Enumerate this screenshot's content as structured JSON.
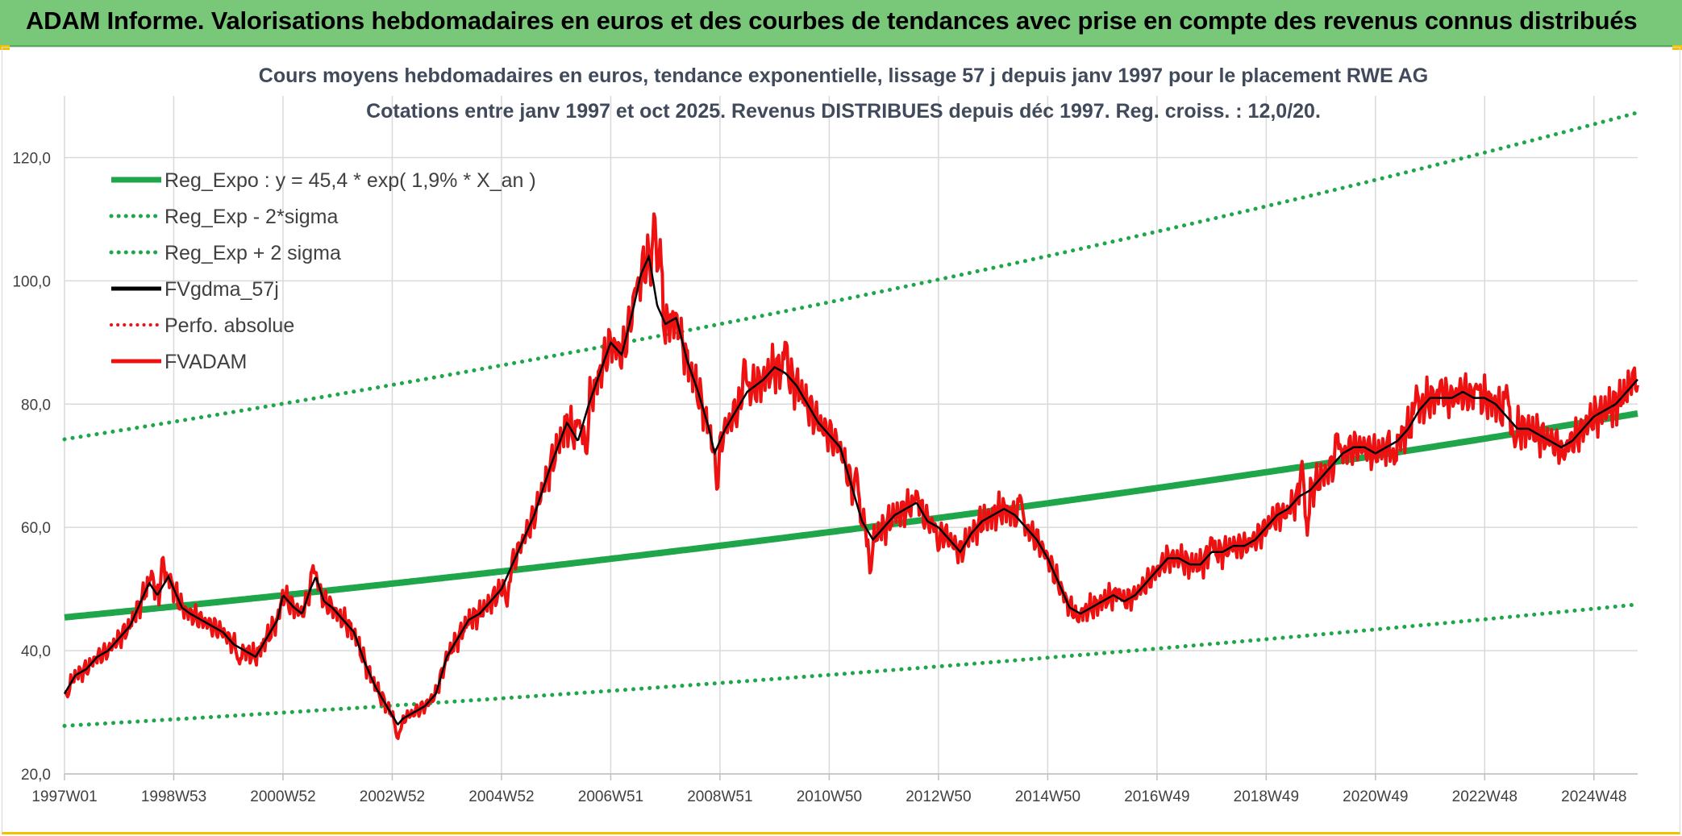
{
  "header": {
    "title": "ADAM Informe. Valorisations hebdomadaires en euros et des courbes de tendances avec prise en compte des revenus connus distribués"
  },
  "colors": {
    "banner": "#79c87a",
    "trend": "#1fa64a",
    "bands": "#1fa64a",
    "smooth": "#000000",
    "price": "#ee1111",
    "perf": "#ee1111",
    "grid": "#d9d9d9"
  },
  "chart_data": {
    "type": "line",
    "title_line1": "Cours moyens hebdomadaires en euros, tendance exponentielle, lissage 57 j depuis janv 1997 pour le placement RWE AG",
    "title_line2": "Cotations entre janv 1997 et oct 2025. Revenus DISTRIBUES depuis déc 1997. Reg. croiss. : 12,0/20.",
    "x_range": [
      1997.0,
      2025.8
    ],
    "ylim": [
      20,
      130
    ],
    "yticks": [
      20,
      40,
      60,
      80,
      100,
      120
    ],
    "ytick_labels": [
      "20,0",
      "40,0",
      "60,0",
      "80,0",
      "100,0",
      "120,0"
    ],
    "xtick_positions": [
      1997.0,
      1999.0,
      2001.0,
      2003.0,
      2005.0,
      2007.0,
      2009.0,
      2011.0,
      2013.0,
      2015.0,
      2017.0,
      2019.0,
      2021.0,
      2023.0,
      2025.0
    ],
    "xtick_labels": [
      "1997W01",
      "1998W53",
      "2000W52",
      "2002W52",
      "2004W52",
      "2006W51",
      "2008W51",
      "2010W50",
      "2012W50",
      "2014W50",
      "2016W49",
      "2018W49",
      "2020W49",
      "2022W48",
      "2024W48"
    ],
    "legend": [
      {
        "key": "trend",
        "label": "Reg_Expo : y = 45,4 * exp( 1,9% *  X_an )",
        "style": "solid-thick"
      },
      {
        "key": "lower",
        "label": "Reg_Exp - 2*sigma",
        "style": "dotted-green"
      },
      {
        "key": "upper",
        "label": "Reg_Exp + 2 sigma",
        "style": "dotted-green"
      },
      {
        "key": "smooth",
        "label": "FVgdma_57j",
        "style": "solid-black"
      },
      {
        "key": "perf",
        "label": "Perfo. absolue",
        "style": "dotted-red"
      },
      {
        "key": "price",
        "label": "FVADAM",
        "style": "solid-red"
      }
    ],
    "trend": {
      "a": 45.4,
      "rate": 0.019,
      "lower_start": 27.8,
      "lower_end": 47.5,
      "upper_start": 74.3,
      "upper_end": 127.3
    },
    "price_anchors": [
      [
        1997.0,
        33
      ],
      [
        1997.2,
        36
      ],
      [
        1997.4,
        37
      ],
      [
        1997.6,
        39
      ],
      [
        1997.8,
        40
      ],
      [
        1998.0,
        42
      ],
      [
        1998.2,
        44
      ],
      [
        1998.4,
        48
      ],
      [
        1998.55,
        51
      ],
      [
        1998.7,
        49
      ],
      [
        1998.9,
        52
      ],
      [
        1999.0,
        50
      ],
      [
        1999.15,
        47
      ],
      [
        1999.3,
        46
      ],
      [
        1999.5,
        45
      ],
      [
        1999.7,
        44
      ],
      [
        1999.9,
        43
      ],
      [
        2000.1,
        41
      ],
      [
        2000.3,
        40
      ],
      [
        2000.5,
        39
      ],
      [
        2000.7,
        42
      ],
      [
        2000.9,
        45
      ],
      [
        2001.0,
        49
      ],
      [
        2001.2,
        47
      ],
      [
        2001.35,
        46
      ],
      [
        2001.5,
        50
      ],
      [
        2001.6,
        52
      ],
      [
        2001.75,
        48
      ],
      [
        2001.9,
        47
      ],
      [
        2002.1,
        45
      ],
      [
        2002.3,
        43
      ],
      [
        2002.5,
        38
      ],
      [
        2002.7,
        34
      ],
      [
        2002.9,
        31
      ],
      [
        2003.1,
        28
      ],
      [
        2003.2,
        29
      ],
      [
        2003.4,
        30
      ],
      [
        2003.6,
        31
      ],
      [
        2003.8,
        33
      ],
      [
        2004.0,
        39
      ],
      [
        2004.2,
        42
      ],
      [
        2004.4,
        45
      ],
      [
        2004.6,
        46
      ],
      [
        2004.8,
        48
      ],
      [
        2005.0,
        50
      ],
      [
        2005.3,
        56
      ],
      [
        2005.6,
        62
      ],
      [
        2005.9,
        70
      ],
      [
        2006.2,
        77
      ],
      [
        2006.4,
        74
      ],
      [
        2006.6,
        80
      ],
      [
        2006.8,
        85
      ],
      [
        2007.0,
        90
      ],
      [
        2007.2,
        88
      ],
      [
        2007.4,
        95
      ],
      [
        2007.55,
        101
      ],
      [
        2007.7,
        104
      ],
      [
        2007.85,
        96
      ],
      [
        2008.0,
        93
      ],
      [
        2008.2,
        94
      ],
      [
        2008.4,
        87
      ],
      [
        2008.6,
        82
      ],
      [
        2008.8,
        76
      ],
      [
        2008.9,
        72
      ],
      [
        2009.1,
        76
      ],
      [
        2009.3,
        79
      ],
      [
        2009.5,
        82
      ],
      [
        2009.8,
        84
      ],
      [
        2010.0,
        86
      ],
      [
        2010.2,
        85
      ],
      [
        2010.4,
        83
      ],
      [
        2010.6,
        80
      ],
      [
        2010.8,
        77
      ],
      [
        2011.0,
        75
      ],
      [
        2011.2,
        73
      ],
      [
        2011.4,
        67
      ],
      [
        2011.6,
        61
      ],
      [
        2011.8,
        58
      ],
      [
        2012.0,
        60
      ],
      [
        2012.2,
        62
      ],
      [
        2012.4,
        63
      ],
      [
        2012.6,
        64
      ],
      [
        2012.8,
        61
      ],
      [
        2013.0,
        60
      ],
      [
        2013.2,
        58
      ],
      [
        2013.4,
        56
      ],
      [
        2013.6,
        59
      ],
      [
        2013.8,
        61
      ],
      [
        2014.0,
        62
      ],
      [
        2014.2,
        63
      ],
      [
        2014.4,
        62
      ],
      [
        2014.6,
        60
      ],
      [
        2014.8,
        58
      ],
      [
        2015.0,
        55
      ],
      [
        2015.2,
        51
      ],
      [
        2015.4,
        47
      ],
      [
        2015.6,
        46
      ],
      [
        2015.8,
        47
      ],
      [
        2016.0,
        48
      ],
      [
        2016.2,
        49
      ],
      [
        2016.4,
        48
      ],
      [
        2016.6,
        49
      ],
      [
        2016.8,
        51
      ],
      [
        2017.0,
        53
      ],
      [
        2017.2,
        55
      ],
      [
        2017.4,
        55
      ],
      [
        2017.6,
        54
      ],
      [
        2017.8,
        54
      ],
      [
        2018.0,
        56
      ],
      [
        2018.2,
        56
      ],
      [
        2018.4,
        57
      ],
      [
        2018.6,
        57
      ],
      [
        2018.8,
        58
      ],
      [
        2019.0,
        60
      ],
      [
        2019.2,
        62
      ],
      [
        2019.4,
        63
      ],
      [
        2019.6,
        65
      ],
      [
        2019.8,
        66
      ],
      [
        2020.0,
        68
      ],
      [
        2020.2,
        70
      ],
      [
        2020.4,
        72
      ],
      [
        2020.6,
        73
      ],
      [
        2020.8,
        73
      ],
      [
        2021.0,
        72
      ],
      [
        2021.2,
        73
      ],
      [
        2021.4,
        74
      ],
      [
        2021.6,
        76
      ],
      [
        2021.8,
        79
      ],
      [
        2022.0,
        81
      ],
      [
        2022.2,
        81
      ],
      [
        2022.4,
        81
      ],
      [
        2022.6,
        82
      ],
      [
        2022.8,
        81
      ],
      [
        2023.0,
        81
      ],
      [
        2023.2,
        80
      ],
      [
        2023.4,
        78
      ],
      [
        2023.6,
        76
      ],
      [
        2023.8,
        76
      ],
      [
        2024.0,
        75
      ],
      [
        2024.2,
        74
      ],
      [
        2024.4,
        73
      ],
      [
        2024.6,
        74
      ],
      [
        2024.8,
        76
      ],
      [
        2025.0,
        78
      ],
      [
        2025.2,
        79
      ],
      [
        2025.4,
        80
      ],
      [
        2025.6,
        82
      ],
      [
        2025.8,
        84
      ]
    ],
    "price_spikes": [
      [
        1997.05,
        32.5
      ],
      [
        1998.6,
        53
      ],
      [
        1998.8,
        55.5
      ],
      [
        2000.2,
        37.5
      ],
      [
        2001.55,
        53.8
      ],
      [
        2003.1,
        25
      ],
      [
        2003.15,
        27
      ],
      [
        2005.1,
        47
      ],
      [
        2006.4,
        78
      ],
      [
        2006.55,
        71
      ],
      [
        2007.45,
        99
      ],
      [
        2007.8,
        113
      ],
      [
        2007.9,
        108
      ],
      [
        2008.25,
        91
      ],
      [
        2008.95,
        65.5
      ],
      [
        2009.45,
        88
      ],
      [
        2010.2,
        91
      ],
      [
        2011.5,
        70
      ],
      [
        2011.75,
        52
      ],
      [
        2012.6,
        66
      ],
      [
        2013.0,
        56
      ],
      [
        2014.5,
        66
      ],
      [
        2015.55,
        44.8
      ],
      [
        2016.3,
        50
      ],
      [
        2018.0,
        58.5
      ],
      [
        2019.35,
        61.5
      ],
      [
        2019.65,
        71
      ],
      [
        2019.75,
        58.5
      ],
      [
        2020.3,
        76
      ],
      [
        2021.35,
        70
      ],
      [
        2021.75,
        83
      ],
      [
        2022.2,
        84
      ],
      [
        2022.85,
        83.5
      ],
      [
        2023.4,
        83
      ],
      [
        2023.55,
        73
      ],
      [
        2024.45,
        71
      ],
      [
        2025.72,
        85.5
      ]
    ]
  }
}
